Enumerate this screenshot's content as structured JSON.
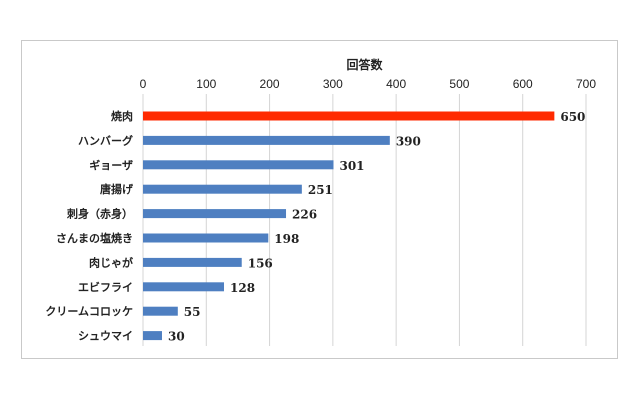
{
  "chart_data": {
    "type": "bar",
    "orientation": "horizontal",
    "title": "",
    "xlabel": "回答数",
    "ylabel": "",
    "xlim": [
      0,
      700
    ],
    "x_ticks": [
      0,
      100,
      200,
      300,
      400,
      500,
      600,
      700
    ],
    "axis_position": "top",
    "grid": true,
    "legend": "none",
    "categories": [
      "焼肉",
      "ハンバーグ",
      "ギョーザ",
      "唐揚げ",
      "刺身（赤身）",
      "さんまの塩焼き",
      "肉じゃが",
      "エビフライ",
      "クリームコロッケ",
      "シュウマイ"
    ],
    "values": [
      650,
      390,
      301,
      251,
      226,
      198,
      156,
      128,
      55,
      30
    ],
    "bar_colors": [
      "#ff2a00",
      "#4e7fc1",
      "#4e7fc1",
      "#4e7fc1",
      "#4e7fc1",
      "#4e7fc1",
      "#4e7fc1",
      "#4e7fc1",
      "#4e7fc1",
      "#4e7fc1"
    ],
    "data_labels": true
  }
}
